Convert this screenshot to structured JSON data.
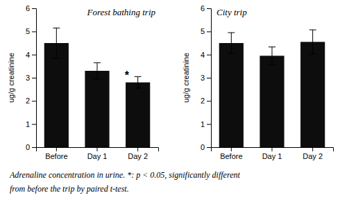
{
  "chart_data": [
    {
      "type": "bar",
      "title": "Forest bathing trip",
      "categories": [
        "Before",
        "Day 1",
        "Day 2"
      ],
      "values": [
        4.5,
        3.3,
        2.8
      ],
      "errors": [
        0.65,
        0.35,
        0.25
      ],
      "color": "#0d0d0d",
      "ylabel": "ug/g creatinine",
      "ylim": [
        0,
        6
      ],
      "yticks": [
        0,
        1,
        2,
        3,
        4,
        5,
        6
      ],
      "annotations": [
        {
          "text": "*",
          "category": "Day 2"
        },
        {
          "text": "Adrenaline concentration in urine.  *: p < 0.05, significantly different"
        },
        {
          "text": "from before the trip by paired t-test."
        }
      ]
    },
    {
      "type": "bar",
      "title": "City trip",
      "categories": [
        "Before",
        "Day 1",
        "Day 2"
      ],
      "values": [
        4.5,
        3.95,
        4.55
      ],
      "errors": [
        0.45,
        0.38,
        0.52
      ],
      "color": "#0d0d0d",
      "ylabel": "ug/g creatinine",
      "ylim": [
        0,
        6
      ],
      "yticks": [
        0,
        1,
        2,
        3,
        4,
        5,
        6
      ]
    }
  ]
}
